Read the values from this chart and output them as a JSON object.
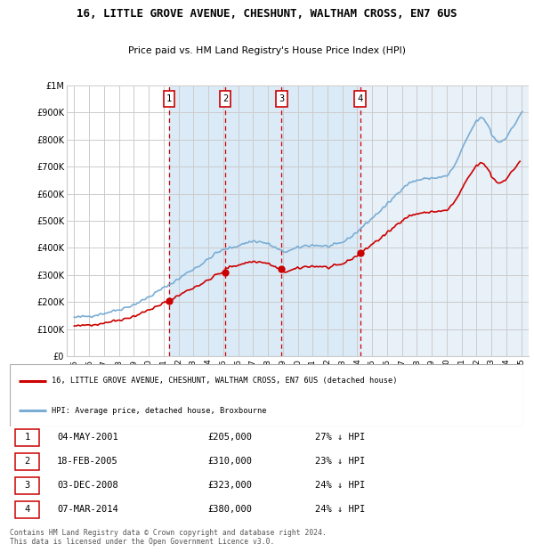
{
  "title": "16, LITTLE GROVE AVENUE, CHESHUNT, WALTHAM CROSS, EN7 6US",
  "subtitle": "Price paid vs. HM Land Registry's House Price Index (HPI)",
  "footer": "Contains HM Land Registry data © Crown copyright and database right 2024.\nThis data is licensed under the Open Government Licence v3.0.",
  "legend_line1": "16, LITTLE GROVE AVENUE, CHESHUNT, WALTHAM CROSS, EN7 6US (detached house)",
  "legend_line2": "HPI: Average price, detached house, Broxbourne",
  "transactions": [
    {
      "num": 1,
      "date": "04-MAY-2001",
      "price": 205000,
      "pct": "27%",
      "year": 2001.37
    },
    {
      "num": 2,
      "date": "18-FEB-2005",
      "price": 310000,
      "pct": "23%",
      "year": 2005.13
    },
    {
      "num": 3,
      "date": "03-DEC-2008",
      "price": 323000,
      "pct": "24%",
      "year": 2008.92
    },
    {
      "num": 4,
      "date": "07-MAR-2014",
      "price": 380000,
      "pct": "24%",
      "year": 2014.19
    }
  ],
  "hpi_line_color": "#7aadd4",
  "price_line_color": "#cc0000",
  "dashed_line_color": "#cc0000",
  "shaded_color": "#daeaf7",
  "last_shaded_color": "#e8f0f8",
  "background_color": "#ffffff",
  "grid_color": "#cccccc",
  "ylim": [
    0,
    1000000
  ],
  "xlim": [
    1994.5,
    2025.5
  ],
  "ytick_labels": [
    "£0",
    "£100K",
    "£200K",
    "£300K",
    "£400K",
    "£500K",
    "£600K",
    "£700K",
    "£800K",
    "£900K",
    "£1M"
  ],
  "yticks": [
    0,
    100000,
    200000,
    300000,
    400000,
    500000,
    600000,
    700000,
    800000,
    900000,
    1000000
  ],
  "xticks": [
    1995,
    1996,
    1997,
    1998,
    1999,
    2000,
    2001,
    2002,
    2003,
    2004,
    2005,
    2006,
    2007,
    2008,
    2009,
    2010,
    2011,
    2012,
    2013,
    2014,
    2015,
    2016,
    2017,
    2018,
    2019,
    2020,
    2021,
    2022,
    2023,
    2024,
    2025
  ]
}
